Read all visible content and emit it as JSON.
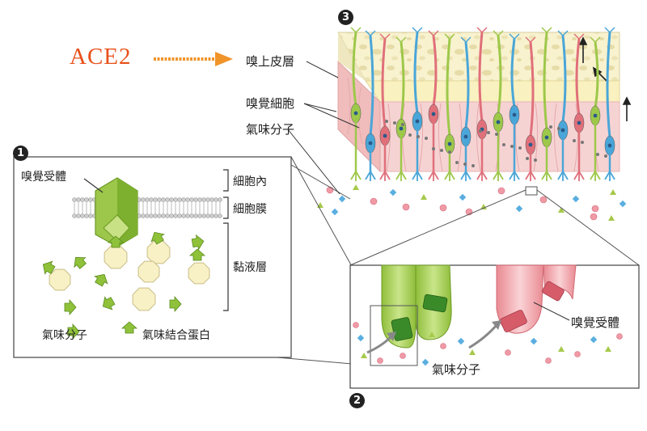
{
  "ace_label": "ACE2",
  "badges": {
    "p1": "1",
    "p2": "2",
    "p3": "3"
  },
  "labels": {
    "olfactory_epithelium": "嗅上皮層",
    "olfactory_cells": "嗅覺細胞",
    "odor_molecule_top": "氣味分子",
    "receptor_panel1": "嗅覺受體",
    "intracellular": "細胞內",
    "cell_membrane": "細胞膜",
    "mucus_layer": "黏液層",
    "odor_molecule_panel1": "氣味分子",
    "odor_binding_protein": "氣味結合蛋白",
    "receptor_panel2": "嗅覺受體",
    "odor_molecule_panel2": "氣味分子"
  },
  "colors": {
    "ace_orange": "#f0942a",
    "green_cell": "#9dc84a",
    "blue_cell": "#4aa6d8",
    "pink_cell": "#e0707a",
    "epithelium_pink": "#f2c8c8",
    "mucus_yellow": "#f7f0c8"
  }
}
